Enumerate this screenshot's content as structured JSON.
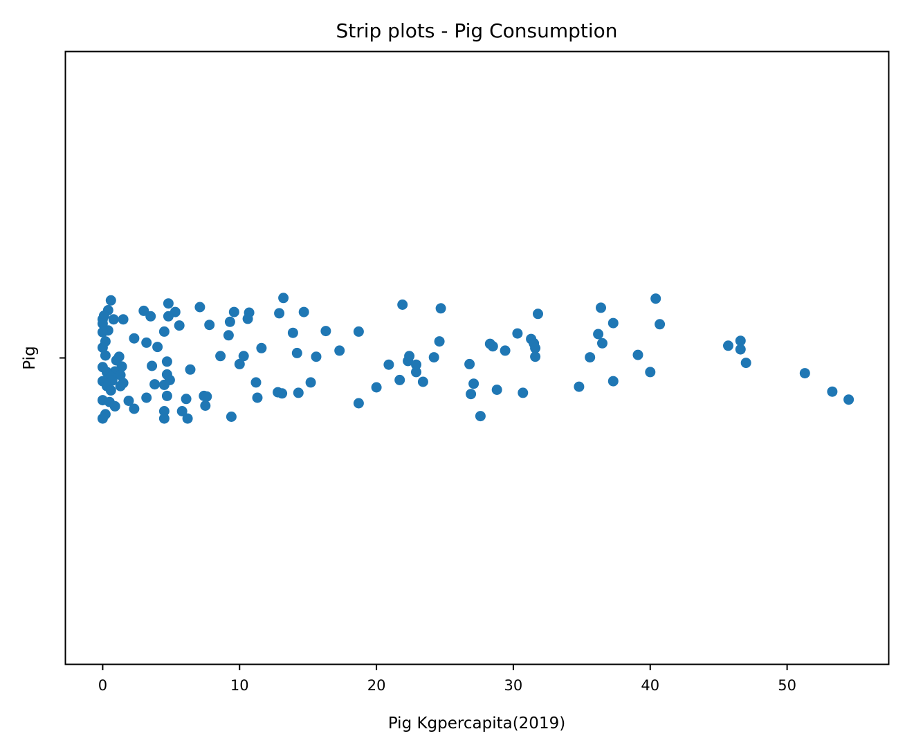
{
  "chart_data": {
    "type": "scatter",
    "subtype": "strip",
    "title": "Strip plots - Pig Consumption",
    "xlabel": "Pig Kgpercapita(2019)",
    "ylabel": "",
    "category_ticks": [
      "Pig"
    ],
    "x_ticks": [
      "0",
      "10",
      "20",
      "30",
      "40",
      "50"
    ],
    "xlim": [
      -2.7,
      57.4
    ],
    "ylim": [
      -0.5,
      0.5
    ],
    "grid": false,
    "legend": false,
    "marker_color": "#1f77b4",
    "points": [
      {
        "x": 0.6,
        "y": 0.094
      },
      {
        "x": 0.4,
        "y": 0.078
      },
      {
        "x": 0.1,
        "y": 0.069
      },
      {
        "x": 0.0,
        "y": 0.063
      },
      {
        "x": 0.8,
        "y": 0.063
      },
      {
        "x": 0.0,
        "y": 0.056
      },
      {
        "x": 0.4,
        "y": 0.045
      },
      {
        "x": 0.0,
        "y": 0.042
      },
      {
        "x": 0.2,
        "y": 0.027
      },
      {
        "x": 0.0,
        "y": 0.017
      },
      {
        "x": 0.2,
        "y": 0.004
      },
      {
        "x": 1.2,
        "y": 0.002
      },
      {
        "x": 1.0,
        "y": -0.004
      },
      {
        "x": 0.0,
        "y": -0.015
      },
      {
        "x": 1.4,
        "y": -0.014
      },
      {
        "x": 0.9,
        "y": -0.022
      },
      {
        "x": 0.3,
        "y": -0.023
      },
      {
        "x": 1.3,
        "y": -0.028
      },
      {
        "x": 0.6,
        "y": -0.031
      },
      {
        "x": 0.0,
        "y": -0.038
      },
      {
        "x": 0.7,
        "y": -0.037
      },
      {
        "x": 1.5,
        "y": -0.041
      },
      {
        "x": 0.3,
        "y": -0.046
      },
      {
        "x": 1.3,
        "y": -0.046
      },
      {
        "x": 0.6,
        "y": -0.053
      },
      {
        "x": 0.0,
        "y": -0.069
      },
      {
        "x": 0.5,
        "y": -0.072
      },
      {
        "x": 0.9,
        "y": -0.079
      },
      {
        "x": 0.2,
        "y": -0.092
      },
      {
        "x": 0.0,
        "y": -0.099
      },
      {
        "x": 1.5,
        "y": 0.063
      },
      {
        "x": 2.3,
        "y": 0.032
      },
      {
        "x": 3.0,
        "y": 0.077
      },
      {
        "x": 3.5,
        "y": 0.068
      },
      {
        "x": 4.8,
        "y": 0.089
      },
      {
        "x": 5.3,
        "y": 0.075
      },
      {
        "x": 4.8,
        "y": 0.068
      },
      {
        "x": 5.6,
        "y": 0.053
      },
      {
        "x": 4.5,
        "y": 0.043
      },
      {
        "x": 3.2,
        "y": 0.025
      },
      {
        "x": 4.0,
        "y": 0.018
      },
      {
        "x": 4.7,
        "y": -0.006
      },
      {
        "x": 3.6,
        "y": -0.013
      },
      {
        "x": 4.7,
        "y": -0.027
      },
      {
        "x": 4.9,
        "y": -0.036
      },
      {
        "x": 3.8,
        "y": -0.043
      },
      {
        "x": 4.5,
        "y": -0.044
      },
      {
        "x": 4.7,
        "y": -0.062
      },
      {
        "x": 3.2,
        "y": -0.065
      },
      {
        "x": 1.9,
        "y": -0.07
      },
      {
        "x": 2.3,
        "y": -0.083
      },
      {
        "x": 4.5,
        "y": -0.087
      },
      {
        "x": 4.5,
        "y": -0.099
      },
      {
        "x": 5.8,
        "y": -0.087
      },
      {
        "x": 6.2,
        "y": -0.099
      },
      {
        "x": 6.1,
        "y": -0.067
      },
      {
        "x": 6.4,
        "y": -0.019
      },
      {
        "x": 7.1,
        "y": 0.083
      },
      {
        "x": 7.8,
        "y": 0.054
      },
      {
        "x": 7.4,
        "y": -0.062
      },
      {
        "x": 7.6,
        "y": -0.063
      },
      {
        "x": 7.5,
        "y": -0.078
      },
      {
        "x": 9.4,
        "y": -0.096
      },
      {
        "x": 8.6,
        "y": 0.003
      },
      {
        "x": 9.2,
        "y": 0.037
      },
      {
        "x": 9.3,
        "y": 0.059
      },
      {
        "x": 9.6,
        "y": 0.075
      },
      {
        "x": 10.7,
        "y": 0.074
      },
      {
        "x": 10.6,
        "y": 0.064
      },
      {
        "x": 10.3,
        "y": 0.003
      },
      {
        "x": 10.0,
        "y": -0.01
      },
      {
        "x": 11.6,
        "y": 0.016
      },
      {
        "x": 11.2,
        "y": -0.04
      },
      {
        "x": 11.3,
        "y": -0.065
      },
      {
        "x": 13.2,
        "y": 0.098
      },
      {
        "x": 12.9,
        "y": 0.073
      },
      {
        "x": 14.7,
        "y": 0.075
      },
      {
        "x": 13.9,
        "y": 0.041
      },
      {
        "x": 14.2,
        "y": 0.008
      },
      {
        "x": 15.6,
        "y": 0.002
      },
      {
        "x": 12.8,
        "y": -0.056
      },
      {
        "x": 13.1,
        "y": -0.058
      },
      {
        "x": 14.3,
        "y": -0.057
      },
      {
        "x": 15.2,
        "y": -0.04
      },
      {
        "x": 16.3,
        "y": 0.044
      },
      {
        "x": 17.3,
        "y": 0.012
      },
      {
        "x": 18.7,
        "y": 0.043
      },
      {
        "x": 18.7,
        "y": -0.074
      },
      {
        "x": 20.0,
        "y": -0.048
      },
      {
        "x": 20.9,
        "y": -0.011
      },
      {
        "x": 21.7,
        "y": -0.036
      },
      {
        "x": 21.9,
        "y": 0.087
      },
      {
        "x": 22.3,
        "y": -0.005
      },
      {
        "x": 22.4,
        "y": 0.003
      },
      {
        "x": 22.9,
        "y": -0.011
      },
      {
        "x": 22.9,
        "y": -0.023
      },
      {
        "x": 23.4,
        "y": -0.039
      },
      {
        "x": 24.2,
        "y": 0.001
      },
      {
        "x": 24.6,
        "y": 0.027
      },
      {
        "x": 24.7,
        "y": 0.081
      },
      {
        "x": 26.8,
        "y": -0.01
      },
      {
        "x": 27.1,
        "y": -0.042
      },
      {
        "x": 26.9,
        "y": -0.059
      },
      {
        "x": 27.6,
        "y": -0.095
      },
      {
        "x": 28.3,
        "y": 0.023
      },
      {
        "x": 28.5,
        "y": 0.019
      },
      {
        "x": 28.8,
        "y": -0.052
      },
      {
        "x": 29.4,
        "y": 0.012
      },
      {
        "x": 30.3,
        "y": 0.04
      },
      {
        "x": 30.7,
        "y": -0.057
      },
      {
        "x": 31.3,
        "y": 0.031
      },
      {
        "x": 31.5,
        "y": 0.024
      },
      {
        "x": 31.6,
        "y": 0.016
      },
      {
        "x": 31.6,
        "y": 0.002
      },
      {
        "x": 31.8,
        "y": 0.072
      },
      {
        "x": 34.8,
        "y": -0.047
      },
      {
        "x": 35.6,
        "y": 0.001
      },
      {
        "x": 36.2,
        "y": 0.039
      },
      {
        "x": 36.4,
        "y": 0.082
      },
      {
        "x": 36.5,
        "y": 0.024
      },
      {
        "x": 37.3,
        "y": 0.057
      },
      {
        "x": 37.3,
        "y": -0.038
      },
      {
        "x": 39.1,
        "y": 0.005
      },
      {
        "x": 40.0,
        "y": -0.023
      },
      {
        "x": 40.4,
        "y": 0.097
      },
      {
        "x": 40.7,
        "y": 0.055
      },
      {
        "x": 45.7,
        "y": 0.02
      },
      {
        "x": 46.6,
        "y": 0.028
      },
      {
        "x": 46.6,
        "y": 0.014
      },
      {
        "x": 47.0,
        "y": -0.008
      },
      {
        "x": 51.3,
        "y": -0.025
      },
      {
        "x": 53.3,
        "y": -0.055
      },
      {
        "x": 54.5,
        "y": -0.068
      }
    ]
  }
}
